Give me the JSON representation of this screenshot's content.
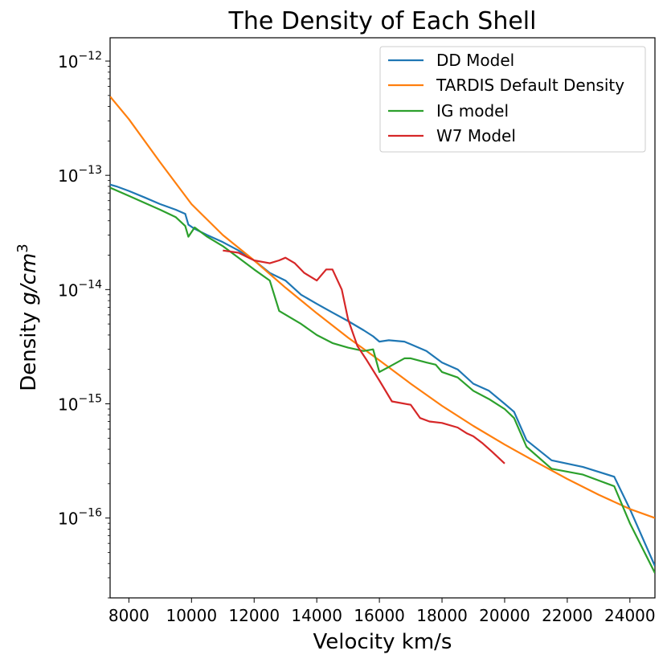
{
  "chart_data": {
    "type": "line",
    "title": "The Density of Each Shell",
    "xlabel": "Velocity km/s",
    "ylabel_prefix": "Density ",
    "ylabel_unit": "g/cm",
    "ylabel_exp": "3",
    "xscale": "linear",
    "yscale": "log",
    "xlim": [
      7400,
      24800
    ],
    "ylim": [
      2e-17,
      1.6e-12
    ],
    "x_ticks": [
      8000,
      10000,
      12000,
      14000,
      16000,
      18000,
      20000,
      22000,
      24000
    ],
    "x_tick_labels": [
      "8000",
      "10000",
      "12000",
      "14000",
      "16000",
      "18000",
      "20000",
      "22000",
      "24000"
    ],
    "y_ticks": [
      1e-12,
      1e-13,
      1e-14,
      1e-15,
      1e-16
    ],
    "y_tick_labels": [
      {
        "base": "10",
        "exp": "−12"
      },
      {
        "base": "10",
        "exp": "−13"
      },
      {
        "base": "10",
        "exp": "−14"
      },
      {
        "base": "10",
        "exp": "−15"
      },
      {
        "base": "10",
        "exp": "−16"
      }
    ],
    "grid": false,
    "legend_position": "top-right",
    "series": [
      {
        "name": "DD Model",
        "color": "#1f77b4",
        "x": [
          7400,
          7600,
          8000,
          8500,
          9000,
          9500,
          9800,
          9900,
          10100,
          10500,
          11000,
          11500,
          12000,
          12500,
          13000,
          13500,
          14000,
          14500,
          15000,
          15500,
          15800,
          16000,
          16300,
          16800,
          17500,
          18000,
          18500,
          19000,
          19500,
          20000,
          20300,
          20700,
          21500,
          22500,
          23500,
          24000,
          24800
        ],
        "y": [
          8.3e-14,
          8e-14,
          7.3e-14,
          6.4e-14,
          5.6e-14,
          5e-14,
          4.6e-14,
          3.7e-14,
          3.4e-14,
          3e-14,
          2.6e-14,
          2.2e-14,
          1.8e-14,
          1.4e-14,
          1.2e-14,
          9e-15,
          7.5e-15,
          6.3e-15,
          5.3e-15,
          4.4e-15,
          3.9e-15,
          3.5e-15,
          3.6e-15,
          3.5e-15,
          2.9e-15,
          2.3e-15,
          2e-15,
          1.5e-15,
          1.3e-15,
          1e-15,
          8.5e-16,
          4.8e-16,
          3.2e-16,
          2.8e-16,
          2.3e-16,
          1.2e-16,
          3.8e-17
        ]
      },
      {
        "name": "TARDIS Default Density",
        "color": "#ff7f0e",
        "x": [
          7400,
          8000,
          9000,
          10000,
          11000,
          12000,
          13000,
          14000,
          15000,
          16000,
          17000,
          18000,
          19000,
          20000,
          21000,
          22000,
          23000,
          24000,
          24800
        ],
        "y": [
          4.9e-13,
          3.1e-13,
          1.3e-13,
          5.6e-14,
          3e-14,
          1.8e-14,
          1.04e-14,
          6.2e-15,
          3.8e-15,
          2.4e-15,
          1.5e-15,
          9.6e-16,
          6.4e-16,
          4.4e-16,
          3.1e-16,
          2.2e-16,
          1.6e-16,
          1.2e-16,
          1e-16
        ]
      },
      {
        "name": "IG model",
        "color": "#2ca02c",
        "x": [
          7400,
          8000,
          9000,
          9500,
          9800,
          9900,
          10100,
          10500,
          11000,
          11500,
          12000,
          12500,
          12800,
          13500,
          14000,
          14500,
          15000,
          15500,
          15800,
          16000,
          16300,
          16800,
          17000,
          17500,
          17800,
          18000,
          18500,
          19000,
          19500,
          20000,
          20300,
          20700,
          21500,
          22500,
          23500,
          24000,
          24800
        ],
        "y": [
          7.8e-14,
          6.6e-14,
          5e-14,
          4.3e-14,
          3.6e-14,
          2.9e-14,
          3.5e-14,
          2.9e-14,
          2.4e-14,
          1.9e-14,
          1.5e-14,
          1.2e-14,
          6.5e-15,
          5e-15,
          4e-15,
          3.4e-15,
          3.1e-15,
          2.9e-15,
          3e-15,
          1.9e-15,
          2.1e-15,
          2.5e-15,
          2.5e-15,
          2.3e-15,
          2.2e-15,
          1.9e-15,
          1.7e-15,
          1.3e-15,
          1.1e-15,
          9e-16,
          7.5e-16,
          4.2e-16,
          2.7e-16,
          2.4e-16,
          1.9e-16,
          9e-17,
          3.3e-17
        ]
      },
      {
        "name": "W7 Model",
        "color": "#d62728",
        "x": [
          11000,
          11500,
          12000,
          12500,
          12800,
          13000,
          13300,
          13600,
          14000,
          14300,
          14500,
          14800,
          15000,
          15300,
          15600,
          16000,
          16400,
          17000,
          17300,
          17600,
          18000,
          18500,
          18800,
          19000,
          19300,
          19600,
          20000
        ],
        "y": [
          2.2e-14,
          2.1e-14,
          1.8e-14,
          1.7e-14,
          1.8e-14,
          1.9e-14,
          1.7e-14,
          1.4e-14,
          1.2e-14,
          1.5e-14,
          1.5e-14,
          1e-14,
          5.5e-15,
          3.2e-15,
          2.4e-15,
          1.6e-15,
          1.05e-15,
          9.8e-16,
          7.5e-16,
          7e-16,
          6.8e-16,
          6.2e-16,
          5.5e-16,
          5.2e-16,
          4.5e-16,
          3.8e-16,
          3e-16
        ]
      }
    ]
  }
}
